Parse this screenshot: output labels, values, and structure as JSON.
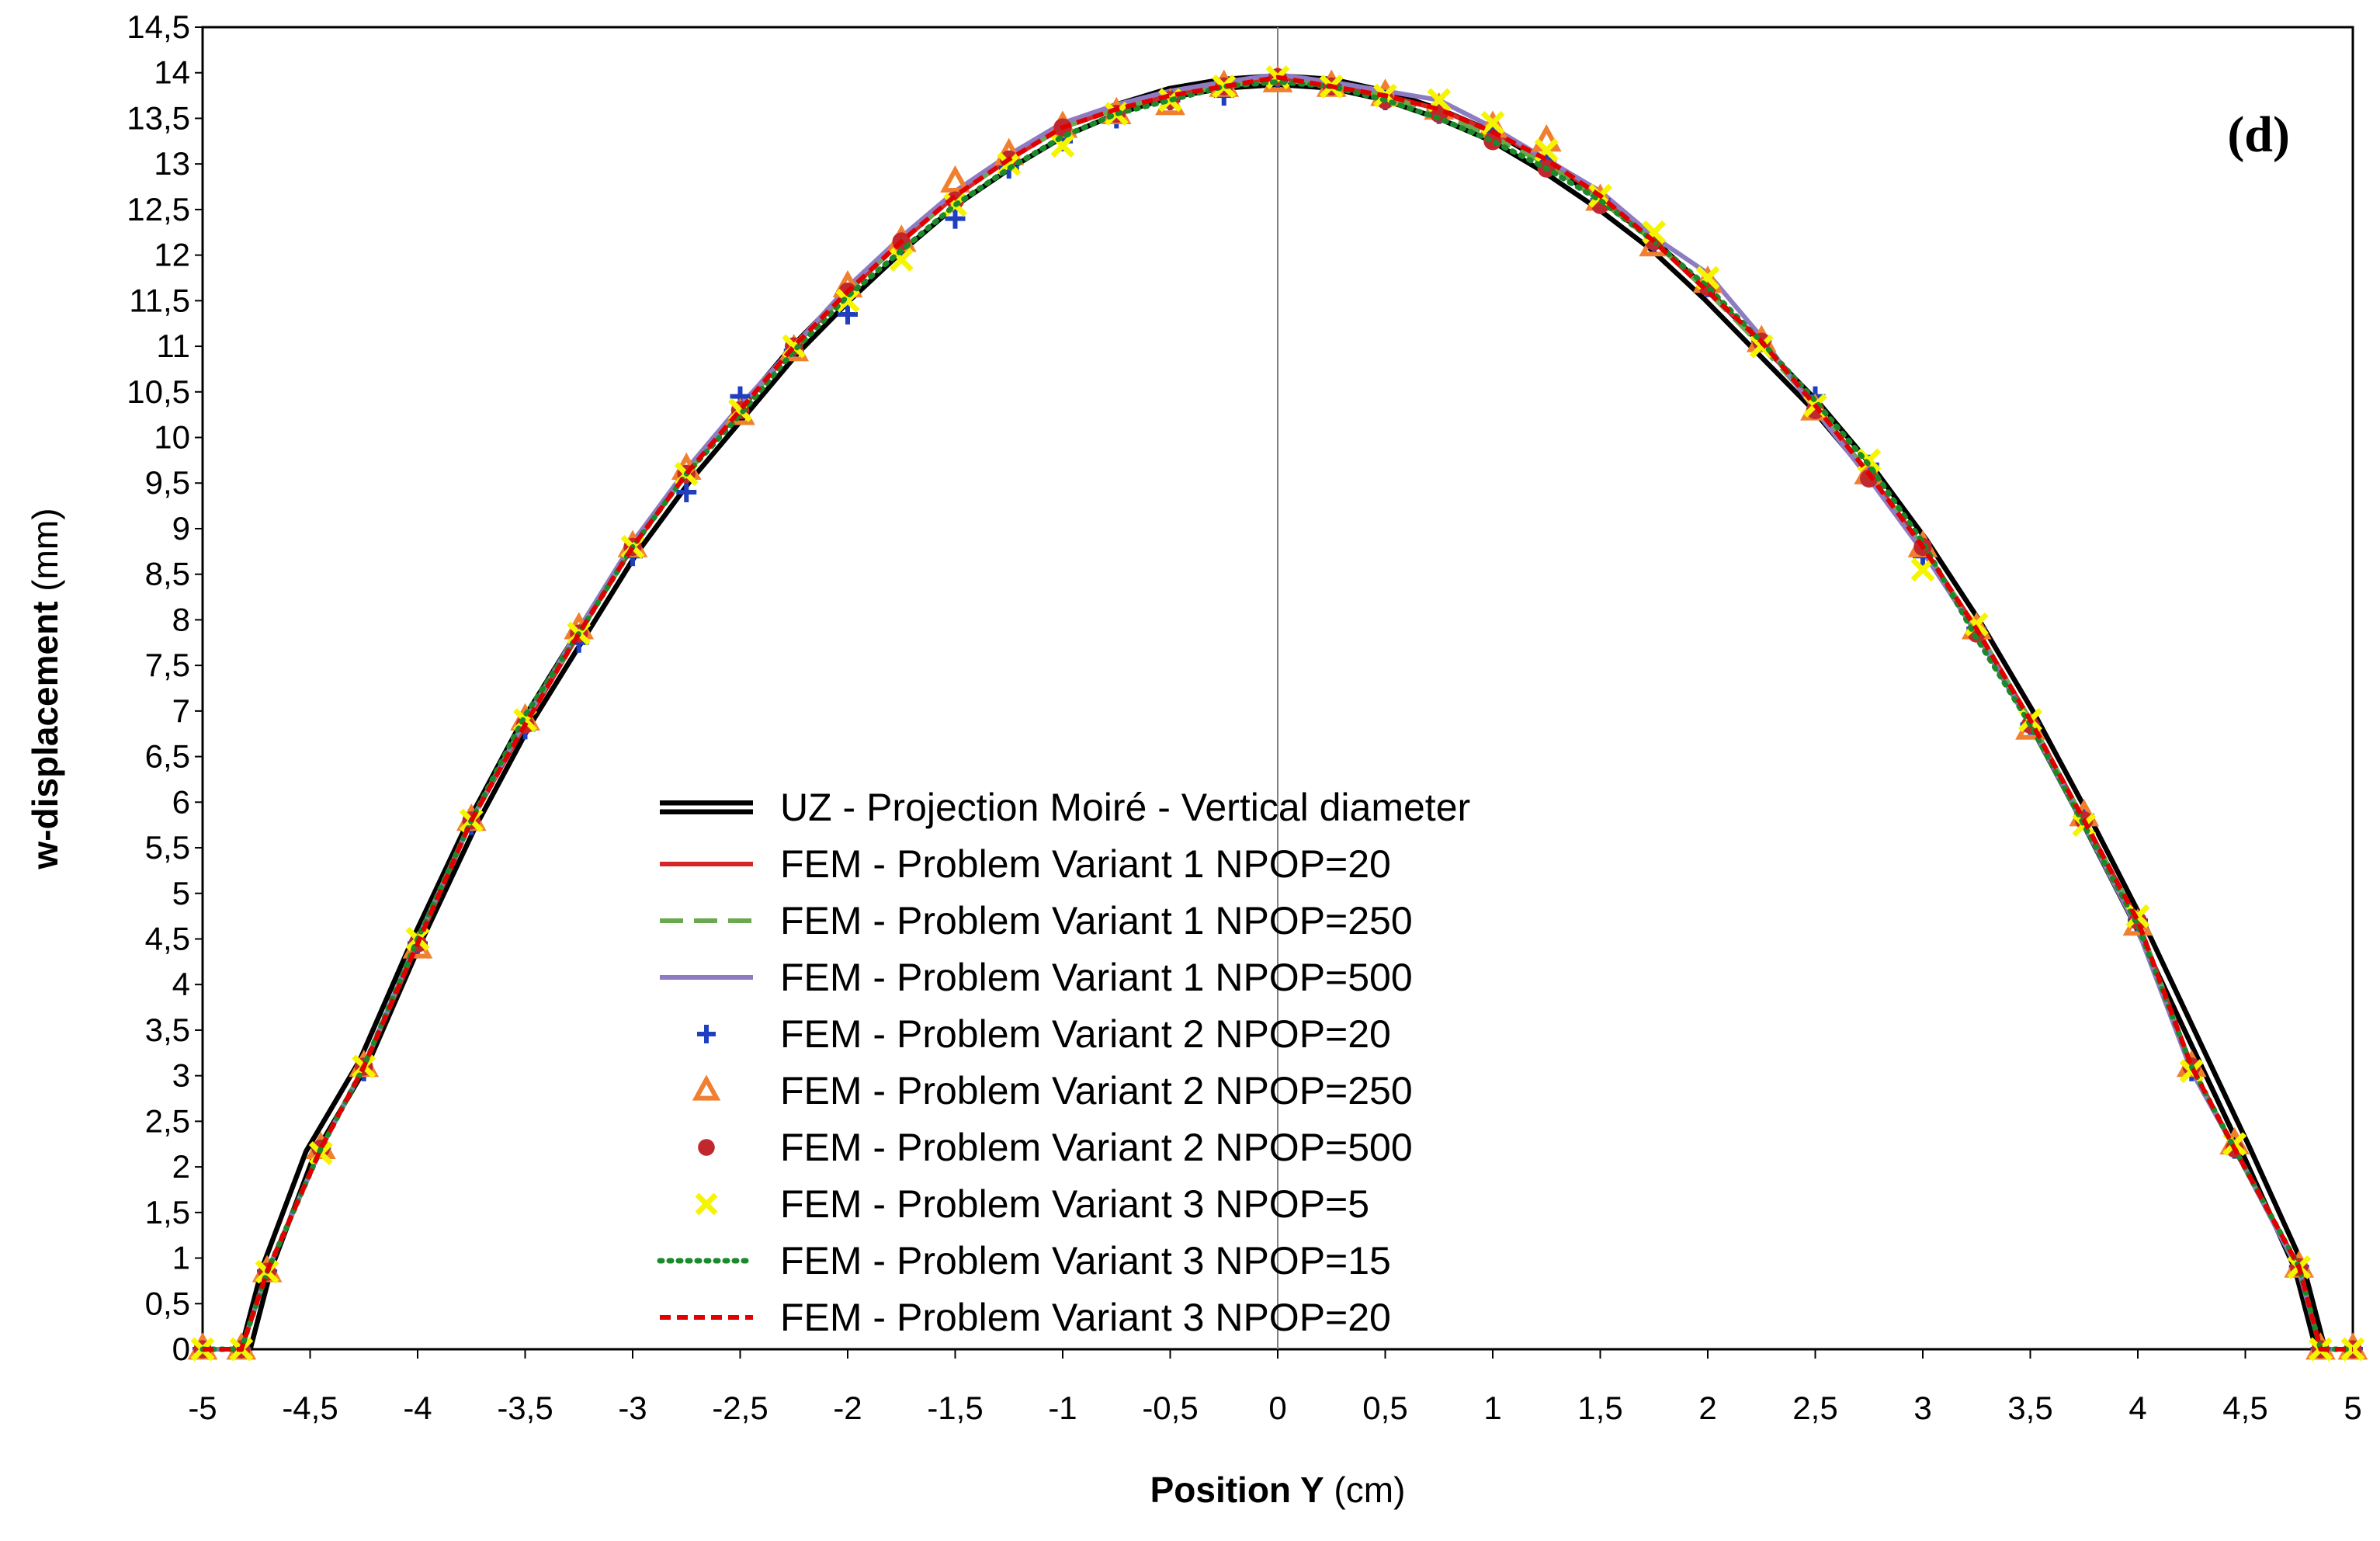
{
  "chart_data": {
    "type": "line",
    "title": "",
    "panel_label": "(d)",
    "xlabel": "Position Y",
    "xlabel_unit": " (cm)",
    "ylabel": "w-displacement",
    "ylabel_unit": " (mm)",
    "xlim": [
      -5,
      5
    ],
    "ylim": [
      0,
      14.5
    ],
    "x_ticks": [
      -5,
      -4.5,
      -4,
      -3.5,
      -3,
      -2.5,
      -2,
      -1.5,
      -1,
      -0.5,
      0,
      0.5,
      1,
      1.5,
      2,
      2.5,
      3,
      3.5,
      4,
      4.5,
      5
    ],
    "x_tick_labels": [
      "-5",
      "-4,5",
      "-4",
      "-3,5",
      "-3",
      "-2,5",
      "-2",
      "-1,5",
      "-1",
      "-0,5",
      "0",
      "0,5",
      "1",
      "1,5",
      "2",
      "2,5",
      "3",
      "3,5",
      "4",
      "4,5",
      "5"
    ],
    "y_ticks": [
      0,
      0.5,
      1,
      1.5,
      2,
      2.5,
      3,
      3.5,
      4,
      4.5,
      5,
      5.5,
      6,
      6.5,
      7,
      7.5,
      8,
      8.5,
      9,
      9.5,
      10,
      10.5,
      11,
      11.5,
      12,
      12.5,
      13,
      13.5,
      14,
      14.5
    ],
    "y_tick_labels": [
      "0",
      "0,5",
      "1",
      "1,5",
      "2",
      "2,5",
      "3",
      "3,5",
      "4",
      "4,5",
      "5",
      "5,5",
      "6",
      "6,5",
      "7",
      "7,5",
      "8",
      "8,5",
      "9",
      "9,5",
      "10",
      "10,5",
      "11",
      "11,5",
      "12",
      "12,5",
      "13",
      "13,5",
      "14",
      "14,5"
    ],
    "grid": false,
    "legend_position": "bottom-center",
    "series": [
      {
        "name": "UZ -  Projection Moiré  -  Vertical diameter",
        "style": "double-line",
        "color": "#000000",
        "marker": "none",
        "x": [
          -4.8,
          -4.7,
          -4.5,
          -4.25,
          -4,
          -3.75,
          -3.5,
          -3.25,
          -3,
          -2.75,
          -2.5,
          -2.25,
          -2,
          -1.75,
          -1.5,
          -1.25,
          -1,
          -0.75,
          -0.5,
          -0.25,
          0,
          0.25,
          0.5,
          0.75,
          1,
          1.25,
          1.5,
          1.75,
          2,
          2.25,
          2.5,
          2.75,
          3,
          3.25,
          3.5,
          3.75,
          4,
          4.25,
          4.5,
          4.75,
          4.85
        ],
        "y": [
          0,
          0.9,
          2.15,
          3.15,
          4.5,
          5.75,
          6.85,
          7.8,
          8.75,
          9.55,
          10.25,
          10.95,
          11.55,
          12.1,
          12.6,
          13.0,
          13.35,
          13.6,
          13.78,
          13.88,
          13.92,
          13.88,
          13.75,
          13.55,
          13.3,
          12.95,
          12.55,
          12.1,
          11.55,
          10.95,
          10.35,
          9.65,
          8.85,
          7.95,
          6.95,
          5.85,
          4.7,
          3.45,
          2.2,
          0.9,
          0
        ]
      },
      {
        "name": "FEM - Problem Variant 1  NPOP=20",
        "style": "solid",
        "color": "#d62728",
        "marker": "none",
        "x": [
          -5,
          -4.82,
          -4.7,
          -4.45,
          -4.25,
          -4,
          -3.75,
          -3.5,
          -3.25,
          -3,
          -2.75,
          -2.5,
          -2.25,
          -2,
          -1.75,
          -1.5,
          -1.25,
          -1,
          -0.75,
          -0.5,
          -0.25,
          0,
          0.25,
          0.5,
          0.75,
          1,
          1.25,
          1.5,
          1.75,
          2,
          2.25,
          2.5,
          2.75,
          3,
          3.25,
          3.5,
          3.75,
          4,
          4.25,
          4.45,
          4.75,
          4.85,
          5
        ],
        "y": [
          0,
          0,
          0.85,
          2.2,
          3.1,
          4.45,
          5.8,
          6.85,
          7.85,
          8.8,
          9.6,
          10.3,
          11.0,
          11.6,
          12.15,
          12.65,
          13.05,
          13.4,
          13.6,
          13.75,
          13.85,
          13.95,
          13.85,
          13.75,
          13.6,
          13.35,
          13.05,
          12.65,
          12.15,
          11.6,
          11.05,
          10.35,
          9.6,
          8.8,
          7.9,
          6.9,
          5.8,
          4.7,
          3.1,
          2.2,
          0.9,
          0,
          0
        ]
      },
      {
        "name": "FEM - Problem Variant 1  NPOP=250",
        "style": "dashed",
        "color": "#6aa84f",
        "marker": "none",
        "x": [
          -5,
          -4.82,
          -4.7,
          -4.45,
          -4.25,
          -4,
          -3.75,
          -3.5,
          -3.25,
          -3,
          -2.75,
          -2.5,
          -2.25,
          -2,
          -1.75,
          -1.5,
          -1.25,
          -1,
          -0.75,
          -0.5,
          -0.25,
          0,
          0.25,
          0.5,
          0.75,
          1,
          1.25,
          1.5,
          1.75,
          2,
          2.25,
          2.5,
          2.75,
          3,
          3.25,
          3.5,
          3.75,
          4,
          4.25,
          4.45,
          4.75,
          4.85,
          5
        ],
        "y": [
          0,
          0,
          0.85,
          2.2,
          3.1,
          4.5,
          5.8,
          6.9,
          7.85,
          8.8,
          9.6,
          10.3,
          11.0,
          11.6,
          12.15,
          12.65,
          13.05,
          13.4,
          13.6,
          13.75,
          13.85,
          13.93,
          13.85,
          13.75,
          13.55,
          13.3,
          13.0,
          12.6,
          12.15,
          11.6,
          11.0,
          10.35,
          9.6,
          8.8,
          7.9,
          6.9,
          5.8,
          4.7,
          3.1,
          2.2,
          0.9,
          0,
          0
        ]
      },
      {
        "name": "FEM - Problem Variant 1  NPOP=500",
        "style": "solid",
        "color": "#8e7cc3",
        "marker": "none",
        "x": [
          -5,
          -4.82,
          -4.7,
          -4.45,
          -4.25,
          -4,
          -3.75,
          -3.5,
          -3.25,
          -3,
          -2.75,
          -2.5,
          -2.25,
          -2,
          -1.75,
          -1.5,
          -1.25,
          -1,
          -0.75,
          -0.5,
          -0.25,
          0,
          0.25,
          0.5,
          0.75,
          1,
          1.25,
          1.5,
          1.75,
          2,
          2.25,
          2.5,
          2.75,
          3,
          3.25,
          3.5,
          3.75,
          4,
          4.25,
          4.45,
          4.75,
          4.85,
          5
        ],
        "y": [
          0,
          0,
          0.85,
          2.2,
          3.1,
          4.5,
          5.8,
          6.9,
          7.9,
          8.85,
          9.65,
          10.35,
          11.0,
          11.65,
          12.2,
          12.7,
          13.1,
          13.45,
          13.65,
          13.8,
          13.9,
          13.98,
          13.9,
          13.8,
          13.7,
          13.4,
          13.05,
          12.7,
          12.2,
          11.8,
          11.1,
          10.3,
          9.55,
          8.75,
          7.85,
          6.85,
          5.75,
          4.6,
          3.05,
          2.2,
          0.85,
          0,
          0
        ]
      },
      {
        "name": "FEM - Problem Variant 2  NPOP=20",
        "style": "none",
        "color": "#1f3fbf",
        "marker": "plus",
        "x": [
          -5,
          -4.82,
          -4.7,
          -4.45,
          -4.25,
          -4,
          -3.75,
          -3.5,
          -3.25,
          -3,
          -2.75,
          -2.5,
          -2.25,
          -2,
          -1.75,
          -1.5,
          -1.25,
          -1,
          -0.75,
          -0.5,
          -0.25,
          0,
          0.25,
          0.5,
          0.75,
          1,
          1.25,
          1.5,
          1.75,
          2,
          2.25,
          2.5,
          2.75,
          3,
          3.25,
          3.5,
          3.75,
          4,
          4.25,
          4.45,
          4.75,
          4.85,
          5
        ],
        "y": [
          0,
          0,
          0.85,
          2.2,
          3.05,
          4.45,
          5.75,
          6.8,
          7.75,
          8.7,
          9.4,
          10.45,
          10.95,
          11.35,
          12.1,
          12.4,
          12.95,
          13.25,
          13.5,
          13.7,
          13.75,
          13.9,
          13.85,
          13.7,
          13.55,
          13.35,
          13.05,
          12.6,
          12.15,
          11.65,
          11.05,
          10.45,
          9.7,
          8.7,
          7.9,
          6.85,
          5.85,
          4.7,
          3.05,
          2.2,
          0.9,
          0,
          0
        ]
      },
      {
        "name": "FEM - Problem Variant 2  NPOP=250",
        "style": "none",
        "color": "#f08030",
        "marker": "triangle",
        "x": [
          -5,
          -4.82,
          -4.7,
          -4.45,
          -4.25,
          -4,
          -3.75,
          -3.5,
          -3.25,
          -3,
          -2.75,
          -2.5,
          -2.25,
          -2,
          -1.75,
          -1.5,
          -1.25,
          -1,
          -0.75,
          -0.5,
          -0.25,
          0,
          0.25,
          0.5,
          0.75,
          1,
          1.25,
          1.5,
          1.75,
          2,
          2.25,
          2.5,
          2.75,
          3,
          3.25,
          3.5,
          3.75,
          4,
          4.25,
          4.45,
          4.75,
          4.85,
          5
        ],
        "y": [
          0,
          0,
          0.85,
          2.2,
          3.1,
          4.4,
          5.8,
          6.9,
          7.9,
          8.8,
          9.65,
          10.25,
          10.95,
          11.65,
          12.15,
          12.8,
          13.1,
          13.4,
          13.55,
          13.65,
          13.85,
          13.9,
          13.85,
          13.75,
          13.6,
          13.4,
          13.25,
          12.6,
          12.1,
          11.7,
          11.05,
          10.3,
          9.6,
          8.8,
          7.9,
          6.8,
          5.85,
          4.65,
          3.1,
          2.25,
          0.9,
          0,
          0
        ]
      },
      {
        "name": "FEM - Problem Variant 2  NPOP=500",
        "style": "none",
        "color": "#c0282d",
        "marker": "circle",
        "x": [
          -5,
          -4.82,
          -4.7,
          -4.45,
          -4.25,
          -4,
          -3.75,
          -3.5,
          -3.25,
          -3,
          -2.75,
          -2.5,
          -2.25,
          -2,
          -1.75,
          -1.5,
          -1.25,
          -1,
          -0.75,
          -0.5,
          -0.25,
          0,
          0.25,
          0.5,
          0.75,
          1,
          1.25,
          1.5,
          1.75,
          2,
          2.25,
          2.5,
          2.75,
          3,
          3.25,
          3.5,
          3.75,
          4,
          4.25,
          4.45,
          4.75,
          4.85,
          5
        ],
        "y": [
          0,
          0,
          0.85,
          2.2,
          3.1,
          4.45,
          5.8,
          6.85,
          7.85,
          8.8,
          9.6,
          10.3,
          11.0,
          11.6,
          12.15,
          12.6,
          13.05,
          13.4,
          13.55,
          13.7,
          13.85,
          13.95,
          13.85,
          13.7,
          13.55,
          13.25,
          12.95,
          12.55,
          12.15,
          11.65,
          11.05,
          10.3,
          9.55,
          8.8,
          7.85,
          6.85,
          5.8,
          4.7,
          3.1,
          2.2,
          0.9,
          0,
          0
        ]
      },
      {
        "name": "FEM - Problem Variant 3  NPOP=5",
        "style": "none",
        "color": "#f5f500",
        "marker": "x",
        "x": [
          -5,
          -4.82,
          -4.7,
          -4.45,
          -4.25,
          -4,
          -3.75,
          -3.5,
          -3.25,
          -3,
          -2.75,
          -2.5,
          -2.25,
          -2,
          -1.75,
          -1.5,
          -1.25,
          -1,
          -0.75,
          -0.5,
          -0.25,
          0,
          0.25,
          0.5,
          0.75,
          1,
          1.25,
          1.5,
          1.75,
          2,
          2.25,
          2.5,
          2.75,
          3,
          3.25,
          3.5,
          3.75,
          4,
          4.25,
          4.45,
          4.75,
          4.85,
          5
        ],
        "y": [
          0,
          0,
          0.85,
          2.15,
          3.1,
          4.5,
          5.8,
          6.9,
          7.85,
          8.8,
          9.6,
          10.3,
          11.0,
          11.5,
          11.95,
          12.55,
          13.0,
          13.2,
          13.55,
          13.7,
          13.85,
          13.95,
          13.85,
          13.75,
          13.7,
          13.45,
          13.15,
          12.65,
          12.25,
          11.75,
          11.0,
          10.35,
          9.75,
          8.55,
          7.95,
          6.9,
          5.75,
          4.75,
          3.05,
          2.25,
          0.9,
          0,
          0
        ]
      },
      {
        "name": "FEM - Problem Variant 3  NPOP=15",
        "style": "dotted",
        "color": "#1a8a2a",
        "marker": "none",
        "x": [
          -5,
          -4.82,
          -4.7,
          -4.45,
          -4.25,
          -4,
          -3.75,
          -3.5,
          -3.25,
          -3,
          -2.75,
          -2.5,
          -2.25,
          -2,
          -1.75,
          -1.5,
          -1.25,
          -1,
          -0.75,
          -0.5,
          -0.25,
          0,
          0.25,
          0.5,
          0.75,
          1,
          1.25,
          1.5,
          1.75,
          2,
          2.25,
          2.5,
          2.75,
          3,
          3.25,
          3.5,
          3.75,
          4,
          4.25,
          4.45,
          4.75,
          4.85,
          5
        ],
        "y": [
          0,
          0,
          0.85,
          2.2,
          3.1,
          4.5,
          5.8,
          6.95,
          7.85,
          8.8,
          9.6,
          10.25,
          10.95,
          11.55,
          12.05,
          12.55,
          12.95,
          13.3,
          13.55,
          13.7,
          13.85,
          13.9,
          13.85,
          13.7,
          13.5,
          13.25,
          12.95,
          12.6,
          12.15,
          11.65,
          11.05,
          10.4,
          9.7,
          8.85,
          7.8,
          6.85,
          5.75,
          4.65,
          3.1,
          2.2,
          0.9,
          0,
          0
        ]
      },
      {
        "name": "FEM - Problem Variant 3  NPOP=20",
        "style": "dashed",
        "color": "#e00000",
        "marker": "none",
        "x": [
          -5,
          -4.82,
          -4.7,
          -4.45,
          -4.25,
          -4,
          -3.75,
          -3.5,
          -3.25,
          -3,
          -2.75,
          -2.5,
          -2.25,
          -2,
          -1.75,
          -1.5,
          -1.25,
          -1,
          -0.75,
          -0.5,
          -0.25,
          0,
          0.25,
          0.5,
          0.75,
          1,
          1.25,
          1.5,
          1.75,
          2,
          2.25,
          2.5,
          2.75,
          3,
          3.25,
          3.5,
          3.75,
          4,
          4.25,
          4.45,
          4.75,
          4.85,
          5
        ],
        "y": [
          0,
          0,
          0.85,
          2.2,
          3.1,
          4.45,
          5.8,
          6.85,
          7.85,
          8.8,
          9.6,
          10.3,
          11.0,
          11.6,
          12.15,
          12.65,
          13.05,
          13.4,
          13.6,
          13.75,
          13.85,
          13.95,
          13.85,
          13.75,
          13.6,
          13.35,
          13.05,
          12.65,
          12.15,
          11.6,
          11.05,
          10.35,
          9.6,
          8.8,
          7.9,
          6.9,
          5.8,
          4.7,
          3.1,
          2.2,
          0.9,
          0,
          0
        ]
      }
    ]
  }
}
